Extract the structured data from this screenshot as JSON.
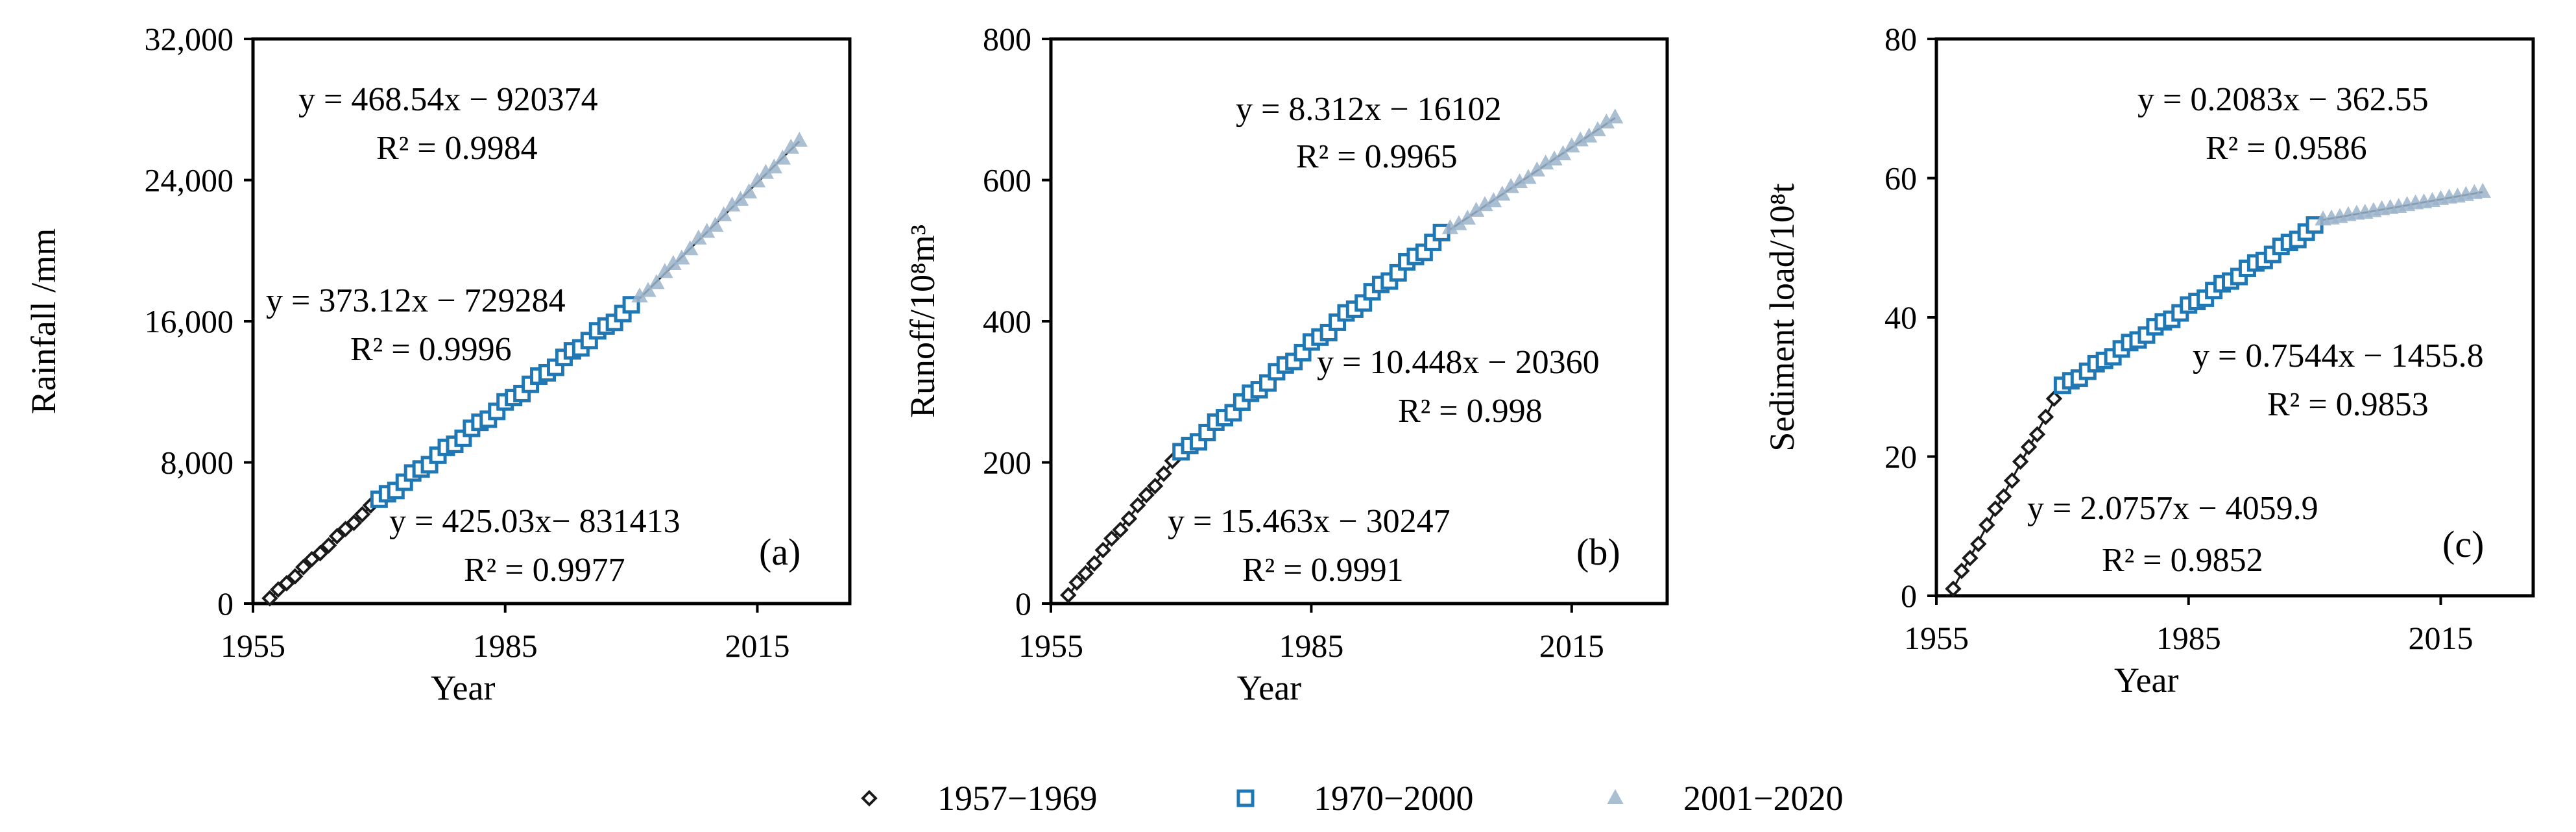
{
  "colors": {
    "p1": "#1a1a1a",
    "p2": "#1f77b4",
    "p3": "#9db4cc",
    "fit": "#1a1a1a"
  },
  "legend": [
    "1957−1969",
    "1970−2000",
    "2001−2020"
  ],
  "chart_data": [
    {
      "type": "scatter",
      "panel_label": "(a)",
      "xlabel": "Year",
      "ylabel": "Rainfall /mm",
      "xlim": [
        1955,
        2026
      ],
      "ylim": [
        0,
        32000
      ],
      "xticks": [
        1955,
        1985,
        2015
      ],
      "yticks": [
        0,
        8000,
        16000,
        24000,
        32000
      ],
      "ytick_labels": [
        "0",
        "8,000",
        "16,000",
        "24,000",
        "32,000"
      ],
      "series": [
        {
          "name": "1957−1969",
          "fit": {
            "slope": 425.03,
            "intercept": -831413
          },
          "start": 1957,
          "end": 1969,
          "y0": 300,
          "y1": 5500,
          "y_ref": 0,
          "equation": "y = 425.03x− 831413",
          "r2": "R² = 0.9977"
        },
        {
          "name": "1970−2000",
          "fit": {
            "slope": 373.12,
            "intercept": -729284
          },
          "start": 1970,
          "end": 2000,
          "y0": 5800,
          "y1": 16800,
          "y_ref": 0,
          "equation": "y = 373.12x −  729284",
          "r2": "R² = 0.9996"
        },
        {
          "name": "2001−2020",
          "fit": {
            "slope": 468.54,
            "intercept": -920374
          },
          "start": 2001,
          "end": 2020,
          "y0": 17300,
          "y1": 26200,
          "y_ref": 0,
          "equation": "y = 468.54x − 920374",
          "r2": "R² = 0.9984"
        }
      ]
    },
    {
      "type": "scatter",
      "panel_label": "(b)",
      "xlabel": "Year",
      "ylabel": "Runoff/10⁸m³",
      "xlim": [
        1955,
        2026
      ],
      "ylim": [
        0,
        800
      ],
      "xticks": [
        1955,
        1985,
        2015
      ],
      "yticks": [
        0,
        200,
        400,
        600,
        800
      ],
      "ytick_labels": [
        "0",
        "200",
        "400",
        "600",
        "800"
      ],
      "series": [
        {
          "name": "1957−1969",
          "fit": {
            "slope": 15.463,
            "intercept": -30247
          },
          "start": 1957,
          "end": 1969,
          "y0": 12,
          "y1": 200,
          "equation": "y = 15.463x − 30247",
          "r2": "R² = 0.9991"
        },
        {
          "name": "1970−2000",
          "fit": {
            "slope": 10.448,
            "intercept": -20360
          },
          "start": 1970,
          "end": 2000,
          "y0": 212,
          "y1": 522,
          "equation": "y = 10.448x − 20360",
          "r2": "R² = 0.998"
        },
        {
          "name": "2001−2020",
          "fit": {
            "slope": 8.312,
            "intercept": -16102
          },
          "start": 2001,
          "end": 2020,
          "y0": 530,
          "y1": 688,
          "equation": "y = 8.312x − 16102",
          "r2": "R² = 0.9965"
        }
      ]
    },
    {
      "type": "scatter",
      "panel_label": "(c)",
      "xlabel": "Year",
      "ylabel": "Sediment load/10⁸t",
      "xlim": [
        1955,
        2026
      ],
      "ylim": [
        0,
        80
      ],
      "xticks": [
        1955,
        1985,
        2015
      ],
      "yticks": [
        0,
        20,
        40,
        60,
        80
      ],
      "ytick_labels": [
        "0",
        "20",
        "40",
        "60",
        "80"
      ],
      "series": [
        {
          "name": "1957−1969",
          "fit": {
            "slope": 2.0757,
            "intercept": -4059.9
          },
          "start": 1957,
          "end": 1969,
          "y0": 1,
          "y1": 28,
          "equation": "y = 2.0757x − 4059.9",
          "r2": "R² = 0.9852"
        },
        {
          "name": "1970−2000",
          "fit": {
            "slope": 0.7544,
            "intercept": -1455.8
          },
          "start": 1970,
          "end": 2000,
          "y0": 30,
          "y1": 53,
          "equation": "y = 0.7544x − 1455.8",
          "r2": "R² = 0.9853"
        },
        {
          "name": "2001−2020",
          "fit": {
            "slope": 0.2083,
            "intercept": -362.55
          },
          "start": 2001,
          "end": 2020,
          "y0": 54,
          "y1": 58,
          "equation": "y = 0.2083x − 362.55",
          "r2": "R² = 0.9586"
        }
      ]
    }
  ]
}
